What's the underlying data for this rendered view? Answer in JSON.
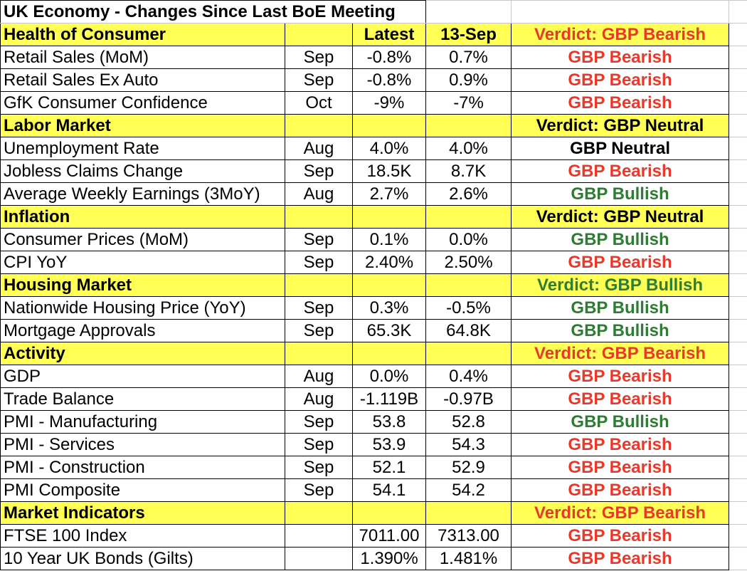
{
  "title": "UK Economy - Changes Since Last BoE Meeting",
  "columns": {
    "latest": "Latest",
    "previous": "13-Sep"
  },
  "colors": {
    "section_bg": "#ffff55",
    "bearish": "#e8392a",
    "bullish": "#2e7d32",
    "neutral": "#000000"
  },
  "sections": [
    {
      "name": "Health of Consumer",
      "show_headers": true,
      "verdict": "Verdict: GBP Bearish",
      "verdict_tone": "bearish",
      "rows": [
        {
          "label": "Retail Sales (MoM)",
          "period": "Sep",
          "latest": "-0.8%",
          "previous": "0.7%",
          "signal": "GBP Bearish",
          "tone": "bearish"
        },
        {
          "label": "Retail Sales Ex Auto",
          "period": "Sep",
          "latest": "-0.8%",
          "previous": "0.9%",
          "signal": "GBP Bearish",
          "tone": "bearish"
        },
        {
          "label": "GfK Consumer Confidence",
          "period": "Oct",
          "latest": "-9%",
          "previous": "-7%",
          "signal": "GBP Bearish",
          "tone": "bearish"
        }
      ]
    },
    {
      "name": "Labor Market",
      "show_headers": false,
      "verdict": "Verdict: GBP Neutral",
      "verdict_tone": "neutral",
      "rows": [
        {
          "label": "Unemployment Rate",
          "period": "Aug",
          "latest": "4.0%",
          "previous": "4.0%",
          "signal": "GBP Neutral",
          "tone": "neutral"
        },
        {
          "label": "Jobless Claims Change",
          "period": "Sep",
          "latest": "18.5K",
          "previous": "8.7K",
          "signal": "GBP Bearish",
          "tone": "bearish"
        },
        {
          "label": "Average Weekly Earnings (3MoY)",
          "period": "Aug",
          "latest": "2.7%",
          "previous": "2.6%",
          "signal": "GBP Bullish",
          "tone": "bullish"
        }
      ]
    },
    {
      "name": "Inflation",
      "show_headers": false,
      "verdict": "Verdict: GBP Neutral",
      "verdict_tone": "neutral",
      "rows": [
        {
          "label": "Consumer Prices (MoM)",
          "period": "Sep",
          "latest": "0.1%",
          "previous": "0.0%",
          "signal": "GBP Bullish",
          "tone": "bullish"
        },
        {
          "label": "CPI YoY",
          "period": "Sep",
          "latest": "2.40%",
          "previous": "2.50%",
          "signal": "GBP Bearish",
          "tone": "bearish"
        }
      ]
    },
    {
      "name": "Housing Market",
      "show_headers": false,
      "verdict": "Verdict: GBP Bullish",
      "verdict_tone": "bullish",
      "rows": [
        {
          "label": "Nationwide Housing Price (YoY)",
          "period": "Sep",
          "latest": "0.3%",
          "previous": "-0.5%",
          "signal": "GBP Bullish",
          "tone": "bullish"
        },
        {
          "label": "Mortgage Approvals",
          "period": "Sep",
          "latest": "65.3K",
          "previous": "64.8K",
          "signal": "GBP Bullish",
          "tone": "bullish"
        }
      ]
    },
    {
      "name": "Activity",
      "show_headers": false,
      "verdict": "Verdict: GBP Bearish",
      "verdict_tone": "bearish",
      "rows": [
        {
          "label": "GDP",
          "period": "Aug",
          "latest": "0.0%",
          "previous": "0.4%",
          "signal": "GBP Bearish",
          "tone": "bearish"
        },
        {
          "label": "Trade Balance",
          "period": "Aug",
          "latest": "-1.119B",
          "previous": "-0.97B",
          "signal": "GBP Bearish",
          "tone": "bearish"
        },
        {
          "label": "PMI - Manufacturing",
          "period": "Sep",
          "latest": "53.8",
          "previous": "52.8",
          "signal": "GBP Bullish",
          "tone": "bullish"
        },
        {
          "label": "PMI - Services",
          "period": "Sep",
          "latest": "53.9",
          "previous": "54.3",
          "signal": "GBP Bearish",
          "tone": "bearish"
        },
        {
          "label": "PMI - Construction",
          "period": "Sep",
          "latest": "52.1",
          "previous": "52.9",
          "signal": "GBP Bearish",
          "tone": "bearish"
        },
        {
          "label": "PMI Composite",
          "period": "Sep",
          "latest": "54.1",
          "previous": "54.2",
          "signal": "GBP Bearish",
          "tone": "bearish"
        }
      ]
    },
    {
      "name": "Market Indicators",
      "show_headers": false,
      "verdict": "Verdict: GBP Bearish",
      "verdict_tone": "bearish",
      "rows": [
        {
          "label": "FTSE 100 Index",
          "period": "",
          "latest": "7011.00",
          "previous": "7313.00",
          "signal": "GBP Bearish",
          "tone": "bearish"
        },
        {
          "label": "10 Year UK Bonds (Gilts)",
          "period": "",
          "latest": "1.390%",
          "previous": "1.481%",
          "signal": "GBP Bearish",
          "tone": "bearish"
        }
      ]
    }
  ]
}
